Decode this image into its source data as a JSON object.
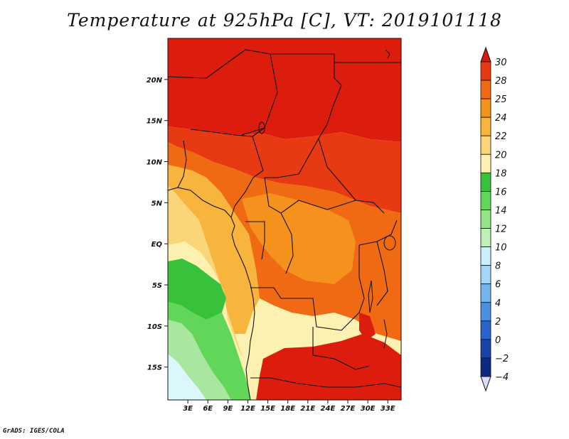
{
  "title": "Temperature at 925hPa [C], VT: 2019101118",
  "credit": "GrADS: IGES/COLA",
  "map": {
    "lat_ticks": [
      {
        "value": 20,
        "label": "20N"
      },
      {
        "value": 15,
        "label": "15N"
      },
      {
        "value": 10,
        "label": "10N"
      },
      {
        "value": 5,
        "label": "5N"
      },
      {
        "value": 0,
        "label": "EQ"
      },
      {
        "value": -5,
        "label": "5S"
      },
      {
        "value": -10,
        "label": "10S"
      },
      {
        "value": -15,
        "label": "15S"
      }
    ],
    "lon_ticks": [
      {
        "value": 3,
        "label": "3E"
      },
      {
        "value": 6,
        "label": "6E"
      },
      {
        "value": 9,
        "label": "9E"
      },
      {
        "value": 12,
        "label": "12E"
      },
      {
        "value": 15,
        "label": "15E"
      },
      {
        "value": 18,
        "label": "18E"
      },
      {
        "value": 21,
        "label": "21E"
      },
      {
        "value": 24,
        "label": "24E"
      },
      {
        "value": 27,
        "label": "27E"
      },
      {
        "value": 30,
        "label": "30E"
      },
      {
        "value": 33,
        "label": "33E"
      }
    ],
    "lon_range": [
      0,
      35
    ],
    "lat_range": [
      -19,
      25
    ]
  },
  "colorbar": {
    "levels": [
      30,
      28,
      25,
      24,
      22,
      20,
      18,
      16,
      14,
      12,
      10,
      8,
      6,
      4,
      2,
      0,
      -2,
      -4
    ],
    "colors": [
      "#d7190c",
      "#e83a12",
      "#f06a14",
      "#f4921d",
      "#f8b53d",
      "#fbd679",
      "#fcf1b0",
      "#38c13a",
      "#62d659",
      "#92e485",
      "#bff0b5",
      "#cfeefb",
      "#a4d6f7",
      "#75b4ef",
      "#4b8fe2",
      "#2a63cc",
      "#1844a8",
      "#0c2a82",
      "#0b1760"
    ],
    "low_end_color": "#dddcf8"
  },
  "fill_regions": [
    {
      "name": "north-deep-red",
      "color": "#dc1d0e"
    },
    {
      "name": "sahel-red-orange",
      "color": "#e83a12"
    },
    {
      "name": "central-orange",
      "color": "#f06a14"
    },
    {
      "name": "congo-light-orange",
      "color": "#f4921d"
    },
    {
      "name": "gabon-yellow-orange",
      "color": "#f8b53d"
    },
    {
      "name": "coast-yellow",
      "color": "#fbd679"
    },
    {
      "name": "ocean-pale-yellow",
      "color": "#fcf1b0"
    },
    {
      "name": "ocean-green",
      "color": "#38c13a"
    },
    {
      "name": "ocean-light-green",
      "color": "#62d659"
    },
    {
      "name": "ocean-pale-green",
      "color": "#a9e7a0"
    },
    {
      "name": "benguela-cyan",
      "color": "#dbf7fb"
    },
    {
      "name": "south-red",
      "color": "#dc1d0e"
    }
  ]
}
